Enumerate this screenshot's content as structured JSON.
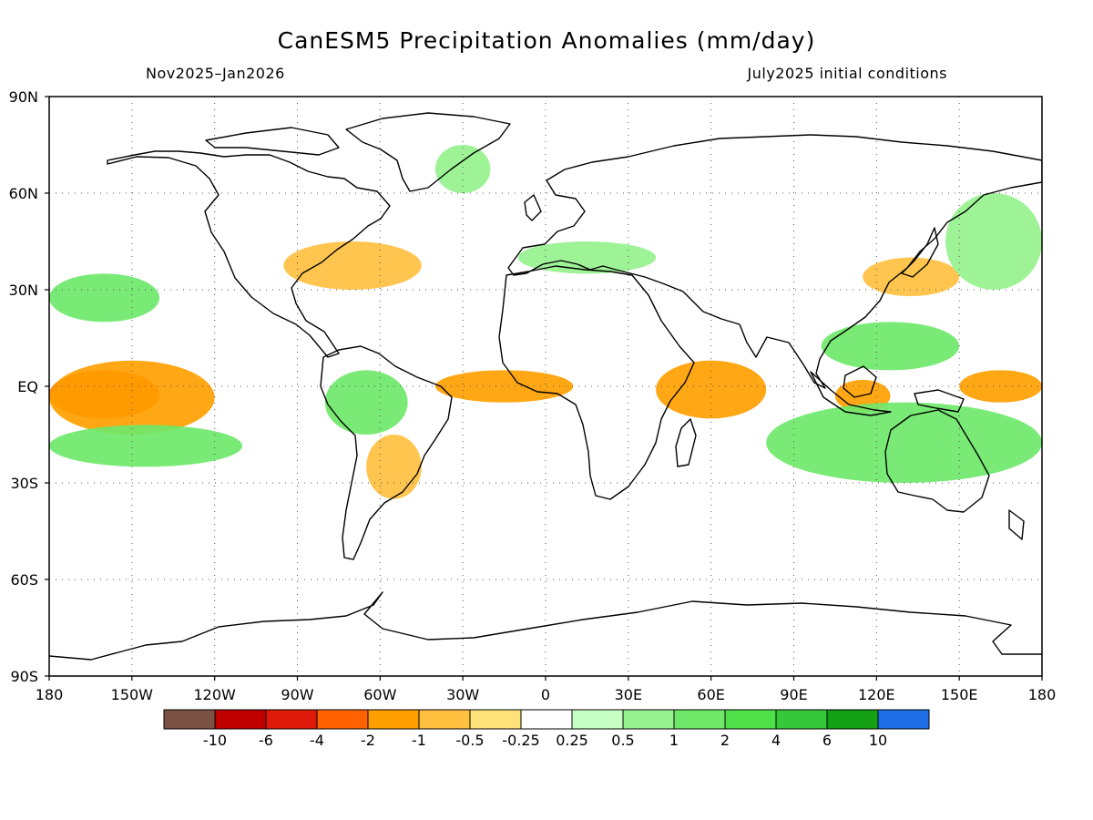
{
  "title": "CanESM5 Precipitation Anomalies (mm/day)",
  "period": "Nov2025–Jan2026",
  "initial_conditions": "July2025 initial conditions",
  "lat_labels": [
    "90N",
    "60N",
    "30N",
    "EQ",
    "30S",
    "60S",
    "90S"
  ],
  "lon_labels": [
    "180",
    "150W",
    "120W",
    "90W",
    "60W",
    "30W",
    "0",
    "30E",
    "60E",
    "90E",
    "120E",
    "150E",
    "180"
  ],
  "map": {
    "projection": "equirectangular",
    "lon_range": [
      -180,
      180
    ],
    "lat_range": [
      -90,
      90
    ],
    "grid": "dotted, every 30 degrees",
    "land_outline_color": "#000000"
  },
  "colorbar": {
    "levels": [
      "-10",
      "-6",
      "-4",
      "-2",
      "-1",
      "-0.5",
      "-0.25",
      "0.25",
      "0.5",
      "1",
      "2",
      "4",
      "6",
      "10"
    ],
    "colors": [
      "#7a5244",
      "#c00000",
      "#e01a0a",
      "#ff6100",
      "#ff9f00",
      "#ffc040",
      "#ffe27a",
      "#ffffff",
      "#c8ffc4",
      "#96f28e",
      "#6fe86a",
      "#4fe04a",
      "#34c83a",
      "#14a014",
      "#1e6ee8"
    ]
  },
  "map_data": {
    "type": "filled-contour-map",
    "variable": "precipitation anomaly",
    "units": "mm/day",
    "anomaly_regions": [
      {
        "level": "-2",
        "lon": [
          -180,
          -140
        ],
        "lat": [
          -10,
          5
        ]
      },
      {
        "level": "-1",
        "lon": [
          -180,
          -120
        ],
        "lat": [
          -15,
          8
        ]
      },
      {
        "level": "-1",
        "lon": [
          -40,
          10
        ],
        "lat": [
          -5,
          5
        ]
      },
      {
        "level": "-1",
        "lon": [
          40,
          80
        ],
        "lat": [
          -10,
          8
        ]
      },
      {
        "level": "-1",
        "lon": [
          150,
          180
        ],
        "lat": [
          -5,
          5
        ]
      },
      {
        "level": "-1",
        "lon": [
          105,
          125
        ],
        "lat": [
          -8,
          2
        ]
      },
      {
        "level": "-0.5",
        "lon": [
          -65,
          -45
        ],
        "lat": [
          -35,
          -15
        ]
      },
      {
        "level": "-0.5",
        "lon": [
          -95,
          -45
        ],
        "lat": [
          30,
          45
        ]
      },
      {
        "level": "-0.5",
        "lon": [
          115,
          150
        ],
        "lat": [
          28,
          40
        ]
      },
      {
        "level": "1",
        "lon": [
          -180,
          -110
        ],
        "lat": [
          -25,
          -12
        ]
      },
      {
        "level": "1",
        "lon": [
          -180,
          -140
        ],
        "lat": [
          20,
          35
        ]
      },
      {
        "level": "1",
        "lon": [
          100,
          150
        ],
        "lat": [
          5,
          20
        ]
      },
      {
        "level": "1",
        "lon": [
          80,
          180
        ],
        "lat": [
          -30,
          -5
        ]
      },
      {
        "level": "1",
        "lon": [
          -80,
          -50
        ],
        "lat": [
          -15,
          5
        ]
      },
      {
        "level": "0.5",
        "lon": [
          145,
          180
        ],
        "lat": [
          30,
          60
        ]
      },
      {
        "level": "0.5",
        "lon": [
          -40,
          -20
        ],
        "lat": [
          60,
          75
        ]
      },
      {
        "level": "0.5",
        "lon": [
          -10,
          40
        ],
        "lat": [
          35,
          45
        ]
      }
    ]
  }
}
